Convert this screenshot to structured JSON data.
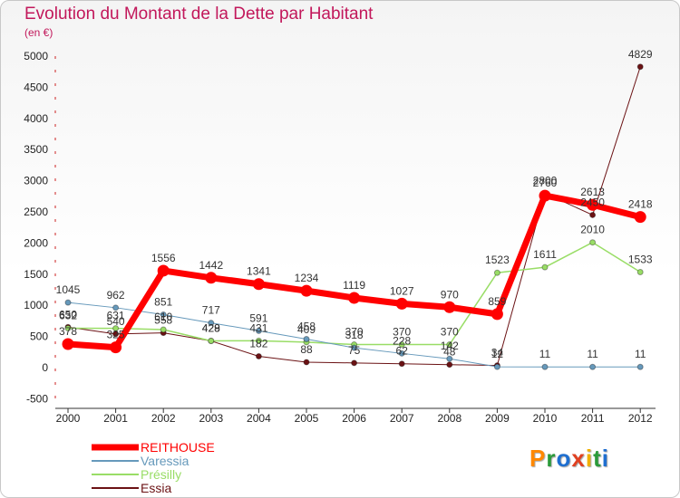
{
  "chart_data": {
    "type": "line",
    "title": "Evolution du Montant de la Dette par Habitant",
    "unit_label": "(en €)",
    "xlabel": "",
    "ylabel": "",
    "ylim": [
      -500,
      5000
    ],
    "yticks": [
      -500,
      0,
      500,
      1000,
      1500,
      2000,
      2500,
      3000,
      3500,
      4000,
      4500,
      5000
    ],
    "x": [
      "2000",
      "2001",
      "2002",
      "2003",
      "2004",
      "2005",
      "2006",
      "2007",
      "2008",
      "2009",
      "2010",
      "2011",
      "2012"
    ],
    "series": [
      {
        "name": "Essia",
        "color": "#6b1214",
        "width": 1,
        "marker": 3,
        "values": [
          650,
          540,
          558,
          428,
          182,
          88,
          75,
          62,
          48,
          34,
          2800,
          2450,
          4829
        ],
        "labels": [
          "650",
          "540",
          "558",
          "428",
          "182",
          "88",
          "75",
          "62",
          "48",
          "34",
          "2800",
          "2450",
          "4829"
        ]
      },
      {
        "name": "Présilly",
        "color": "#99dd66",
        "width": 1.5,
        "marker": 3,
        "values": [
          632,
          631,
          610,
          429,
          431,
          409,
          370,
          370,
          370,
          1523,
          1611,
          2010,
          1533
        ],
        "labels": [
          "632",
          "631",
          "610",
          "429",
          "431",
          "409",
          "370",
          "370",
          "370",
          "1523",
          "1611",
          "2010",
          "1533"
        ]
      },
      {
        "name": "Varessia",
        "color": "#6699bb",
        "width": 1,
        "marker": 3,
        "values": [
          1045,
          962,
          851,
          717,
          591,
          458,
          318,
          228,
          142,
          12,
          11,
          11,
          11
        ],
        "labels": [
          "1045",
          "962",
          "851",
          "717",
          "591",
          "458",
          "318",
          "228",
          "142",
          "12",
          "11",
          "11",
          "11"
        ]
      },
      {
        "name": "REITHOUSE",
        "color": "#ff0000",
        "width": 7,
        "marker": 6,
        "values": [
          378,
          325,
          1556,
          1442,
          1341,
          1234,
          1119,
          1027,
          970,
          859,
          2760,
          2613,
          2418
        ],
        "labels": [
          "378",
          "325",
          "1556",
          "1442",
          "1341",
          "1234",
          "1119",
          "1027",
          "970",
          "859",
          "2760",
          "2613",
          "2418"
        ]
      }
    ],
    "legend": [
      {
        "name": "REITHOUSE",
        "color": "#ff0000"
      },
      {
        "name": "Varessia",
        "color": "#6699bb"
      },
      {
        "name": "Présilly",
        "color": "#99dd66"
      },
      {
        "name": "Essia",
        "color": "#6b1214"
      }
    ],
    "legend_position": "bottom-left",
    "grid": false
  },
  "logo": {
    "text": "Proxiti",
    "letters": [
      "P",
      "r",
      "o",
      "x",
      "i",
      "t",
      "i"
    ],
    "colors": [
      "#ff8800",
      "#2a9a3a",
      "#1f6fd0",
      "#e04020",
      "#f0b000",
      "#2a9a3a",
      "#1f6fd0"
    ]
  }
}
